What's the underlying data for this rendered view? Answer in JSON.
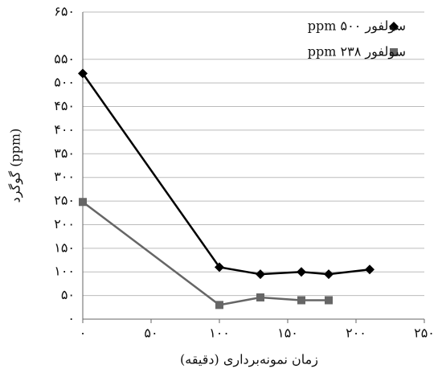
{
  "chart_data": {
    "type": "line",
    "x_label": "زمان نمونه‌برداری (دقیقه)",
    "y_label": "گوگرد (ppm)",
    "xlim": [
      0,
      250
    ],
    "xticks": [
      {
        "value": 0,
        "label": "۰"
      },
      {
        "value": 50,
        "label": "۵۰"
      },
      {
        "value": 100,
        "label": "۱۰۰"
      },
      {
        "value": 150,
        "label": "۱۵۰"
      },
      {
        "value": 200,
        "label": "۲۰۰"
      },
      {
        "value": 250,
        "label": "۲۵۰"
      }
    ],
    "ylim": [
      0,
      650
    ],
    "yticks": [
      {
        "value": 0,
        "label": "۰"
      },
      {
        "value": 50,
        "label": "۵۰"
      },
      {
        "value": 100,
        "label": "۱۰۰"
      },
      {
        "value": 150,
        "label": "۱۵۰"
      },
      {
        "value": 200,
        "label": "۲۰۰"
      },
      {
        "value": 250,
        "label": "۲۵۰"
      },
      {
        "value": 300,
        "label": "۳۰۰"
      },
      {
        "value": 350,
        "label": "۳۵۰"
      },
      {
        "value": 400,
        "label": "۴۰۰"
      },
      {
        "value": 450,
        "label": "۴۵۰"
      },
      {
        "value": 500,
        "label": "۵۰۰"
      },
      {
        "value": 550,
        "label": "۵۵۰"
      },
      {
        "value": 650,
        "label": "۶۵۰"
      }
    ],
    "grid": true,
    "legend": "top-right",
    "series": [
      {
        "name": "سولفور ۵۰۰ ppm",
        "color": "#000000",
        "marker": "diamond",
        "x": [
          0,
          100,
          130,
          160,
          180,
          210
        ],
        "values": [
          520,
          110,
          95,
          100,
          95,
          105
        ]
      },
      {
        "name": "سولفور ۲۳۸ ppm",
        "color": "#666666",
        "marker": "square",
        "x": [
          0,
          100,
          130,
          160,
          180
        ],
        "values": [
          248,
          30,
          46,
          40,
          40
        ]
      }
    ]
  }
}
